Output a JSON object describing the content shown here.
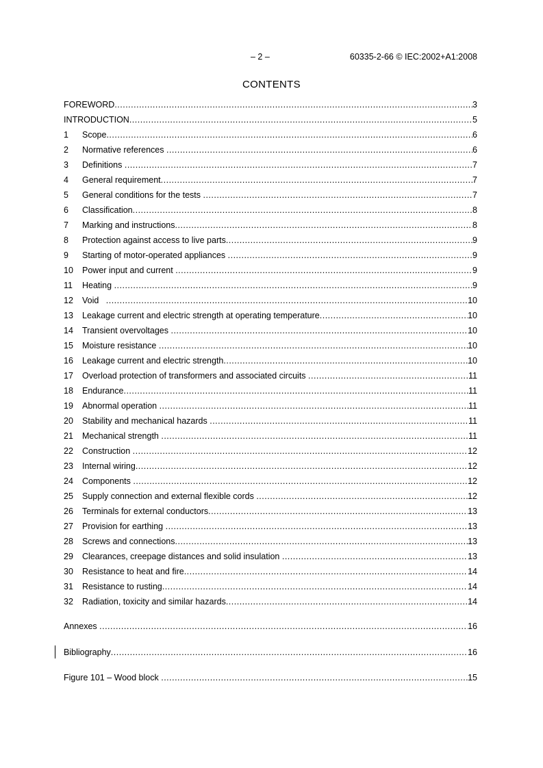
{
  "header": {
    "page_number": "– 2 –",
    "standard": "60335-2-66 © IEC:2002+A1:2008"
  },
  "title": "CONTENTS",
  "front": [
    {
      "label": "FOREWORD",
      "page": "3"
    },
    {
      "label": "INTRODUCTION",
      "page": "5"
    }
  ],
  "clauses": [
    {
      "num": "1",
      "label": "Scope",
      "page": "6"
    },
    {
      "num": "2",
      "label": "Normative references ",
      "page": "6"
    },
    {
      "num": "3",
      "label": "Definitions ",
      "page": "7"
    },
    {
      "num": "4",
      "label": "General requirement",
      "page": "7"
    },
    {
      "num": "5",
      "label": "General conditions for the tests ",
      "page": "7"
    },
    {
      "num": "6",
      "label": "Classification",
      "page": "8"
    },
    {
      "num": "7",
      "label": "Marking and instructions",
      "page": "8"
    },
    {
      "num": "8",
      "label": "Protection against access to live parts",
      "page": "9"
    },
    {
      "num": "9",
      "label": "Starting of motor-operated appliances ",
      "page": "9"
    },
    {
      "num": "10",
      "label": "Power input and current ",
      "page": "9"
    },
    {
      "num": "11",
      "label": "Heating ",
      "page": "9"
    },
    {
      "num": "12",
      "label": "Void   ",
      "page": "10"
    },
    {
      "num": "13",
      "label": "Leakage current and electric strength at operating temperature",
      "page": "10"
    },
    {
      "num": "14",
      "label": "Transient overvoltages ",
      "page": "10"
    },
    {
      "num": "15",
      "label": "Moisture resistance ",
      "page": "10"
    },
    {
      "num": "16",
      "label": "Leakage current and electric strength",
      "page": "10"
    },
    {
      "num": "17",
      "label": "Overload protection of transformers and associated circuits ",
      "page": "11"
    },
    {
      "num": "18",
      "label": "Endurance",
      "page": "11"
    },
    {
      "num": "19",
      "label": "Abnormal operation ",
      "page": "11"
    },
    {
      "num": "20",
      "label": "Stability and mechanical hazards ",
      "page": "11"
    },
    {
      "num": "21",
      "label": "Mechanical strength ",
      "page": "11"
    },
    {
      "num": "22",
      "label": "Construction ",
      "page": "12"
    },
    {
      "num": "23",
      "label": "Internal wiring",
      "page": "12"
    },
    {
      "num": "24",
      "label": "Components ",
      "page": "12"
    },
    {
      "num": "25",
      "label": "Supply connection and external flexible cords ",
      "page": "12"
    },
    {
      "num": "26",
      "label": "Terminals for external conductors",
      "page": "13"
    },
    {
      "num": "27",
      "label": "Provision for earthing ",
      "page": "13"
    },
    {
      "num": "28",
      "label": "Screws and connections",
      "page": "13"
    },
    {
      "num": "29",
      "label": "Clearances, creepage distances and solid insulation ",
      "page": "13"
    },
    {
      "num": "30",
      "label": "Resistance to heat and fire",
      "page": "14"
    },
    {
      "num": "31",
      "label": "Resistance to rusting",
      "page": "14"
    },
    {
      "num": "32",
      "label": "Radiation, toxicity and similar hazards",
      "page": "14"
    }
  ],
  "annexes": {
    "label": "Annexes ",
    "page": "16"
  },
  "bibliography": {
    "label": "Bibliography",
    "page": "16"
  },
  "figures": [
    {
      "label": "Figure 101 – Wood block ",
      "page": "15"
    }
  ]
}
